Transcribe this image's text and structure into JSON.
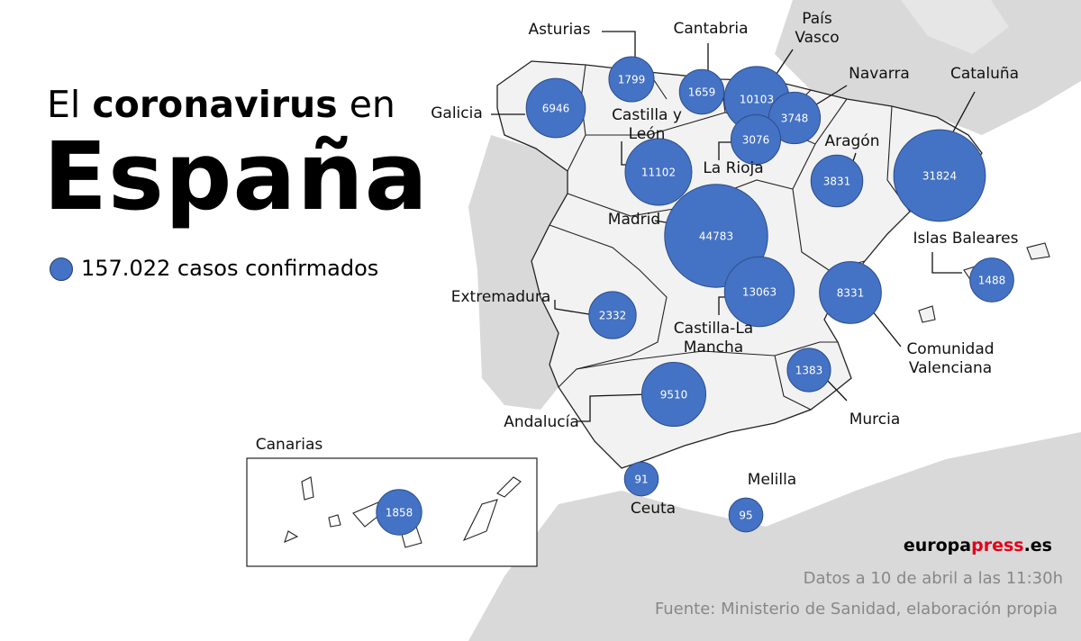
{
  "title": {
    "line1_start": "El",
    "line1_bold": "coronavirus",
    "line1_end": "en",
    "line2": "España"
  },
  "legend": "157.022 casos confirmados",
  "regions": [
    {
      "name": "Galicia",
      "cases": 6946
    },
    {
      "name": "Asturias",
      "cases": 1799
    },
    {
      "name": "Cantabria",
      "cases": 1659
    },
    {
      "name": "País Vasco",
      "cases": 10103
    },
    {
      "name": "Navarra",
      "cases": 3748
    },
    {
      "name": "La Rioja",
      "cases": 3076
    },
    {
      "name": "Castilla y León",
      "cases": 11102
    },
    {
      "name": "Aragón",
      "cases": 3831
    },
    {
      "name": "Cataluña",
      "cases": 31824
    },
    {
      "name": "Madrid",
      "cases": 44783
    },
    {
      "name": "Castilla-La Mancha",
      "cases": 13063
    },
    {
      "name": "Extremadura",
      "cases": 2332
    },
    {
      "name": "Comunidad Valenciana",
      "cases": 8331
    },
    {
      "name": "Islas Baleares",
      "cases": 1488
    },
    {
      "name": "Murcia",
      "cases": 1383
    },
    {
      "name": "Andalucía",
      "cases": 9510
    },
    {
      "name": "Ceuta",
      "cases": 91
    },
    {
      "name": "Melilla",
      "cases": 95
    },
    {
      "name": "Canarias",
      "cases": 1858
    }
  ],
  "brand": {
    "part1": "europa",
    "part2": "press",
    "part3": ".es"
  },
  "date_note": "Datos a 10 de abril a las 11:30h",
  "source": "Fuente: Ministerio de Sanidad, elaboración propia"
}
